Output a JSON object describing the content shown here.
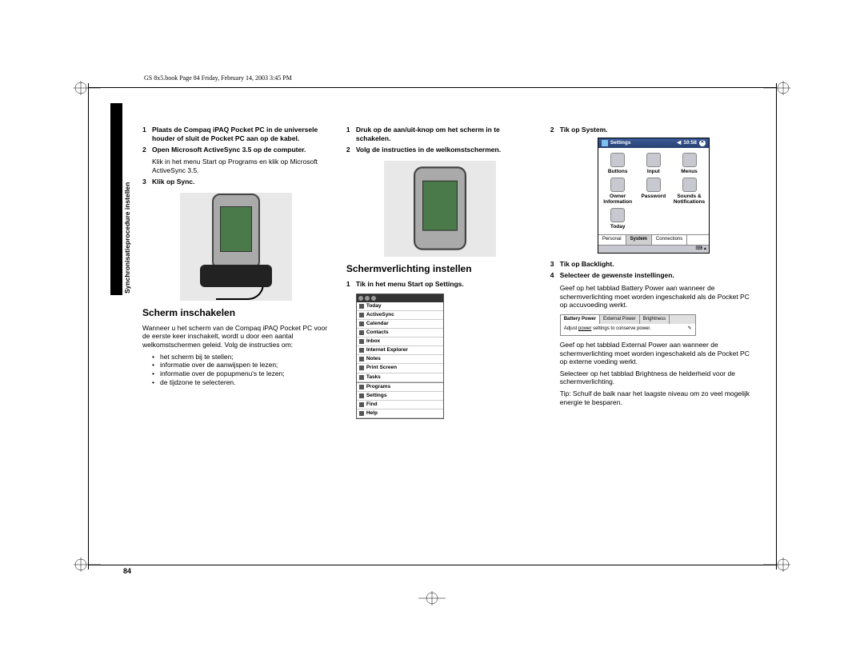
{
  "header_line": "GS 8x5.book  Page 84  Friday, February 14, 2003  3:45 PM",
  "sidebar_label": "Synchronisatieprocedure instellen",
  "page_number": "84",
  "col1": {
    "steps": [
      {
        "n": "1",
        "bold": true,
        "text": "Plaats de Compaq iPAQ Pocket PC in de universele houder of sluit de Pocket PC aan op de kabel."
      },
      {
        "n": "2",
        "bold": true,
        "text": "Open Microsoft ActiveSync 3.5 op de computer."
      },
      {
        "n": "",
        "bold": false,
        "text": "Klik in het menu Start op Programs en klik op Microsoft ActiveSync 3.5."
      },
      {
        "n": "3",
        "bold": true,
        "text": "Klik op Sync."
      }
    ],
    "heading": "Scherm inschakelen",
    "para": "Wanneer u het scherm van de Compaq iPAQ Pocket PC voor de eerste keer inschakelt, wordt u door een aantal welkomstschermen geleid. Volg de instructies om:",
    "bullets": [
      "het scherm bij te stellen;",
      "informatie over de aanwijspen te lezen;",
      "informatie over de popupmenu's te lezen;",
      "de tijdzone te selecteren."
    ]
  },
  "col2": {
    "steps_top": [
      {
        "n": "1",
        "bold": true,
        "text": "Druk op de aan/uit-knop om het scherm in te schakelen."
      },
      {
        "n": "2",
        "bold": true,
        "text": "Volg de instructies in de welkomstschermen."
      }
    ],
    "heading": "Schermverlichting instellen",
    "step_bottom": {
      "n": "1",
      "bold": true,
      "text": "Tik in het menu Start op Settings."
    },
    "menu_items": [
      "Today",
      "ActiveSync",
      "Calendar",
      "Contacts",
      "Inbox",
      "Internet Explorer",
      "Notes",
      "Print Screen",
      "Tasks",
      "Programs",
      "Settings",
      "Find",
      "Help"
    ]
  },
  "col3": {
    "step2": {
      "n": "2",
      "bold": true,
      "text": "Tik op System."
    },
    "settings": {
      "title": "Settings",
      "time": "10:58",
      "icons": [
        {
          "label": "Buttons"
        },
        {
          "label": "Input"
        },
        {
          "label": "Menus"
        },
        {
          "label": "Owner Information"
        },
        {
          "label": "Password"
        },
        {
          "label": "Sounds & Notifications"
        },
        {
          "label": "Today"
        }
      ],
      "tabs": [
        "Personal",
        "System",
        "Connections"
      ],
      "active_tab": 1
    },
    "steps_mid": [
      {
        "n": "3",
        "bold": true,
        "text": "Tik op Backlight."
      },
      {
        "n": "4",
        "bold": true,
        "text": "Selecteer de gewenste instellingen."
      }
    ],
    "para1": "Geef op het tabblad Battery Power aan wanneer de schermverlichting moet worden ingeschakeld als de Pocket PC op accuvoeding werkt.",
    "backlight": {
      "tabs": [
        "Battery Power",
        "External Power",
        "Brightness"
      ],
      "active": 0,
      "note_left": "Adjust",
      "note_underline": "power",
      "note_right": "settings to conserve power."
    },
    "para2": "Geef op het tabblad External Power aan wanneer de schermverlichting moet worden ingeschakeld als de Pocket PC op externe voeding werkt.",
    "para3": "Selecteer op het tabblad Brightness de helderheid voor de schermverlichting.",
    "para4": "Tip: Schuif de balk naar het laagste niveau om zo veel mogelijk energie te besparen."
  }
}
